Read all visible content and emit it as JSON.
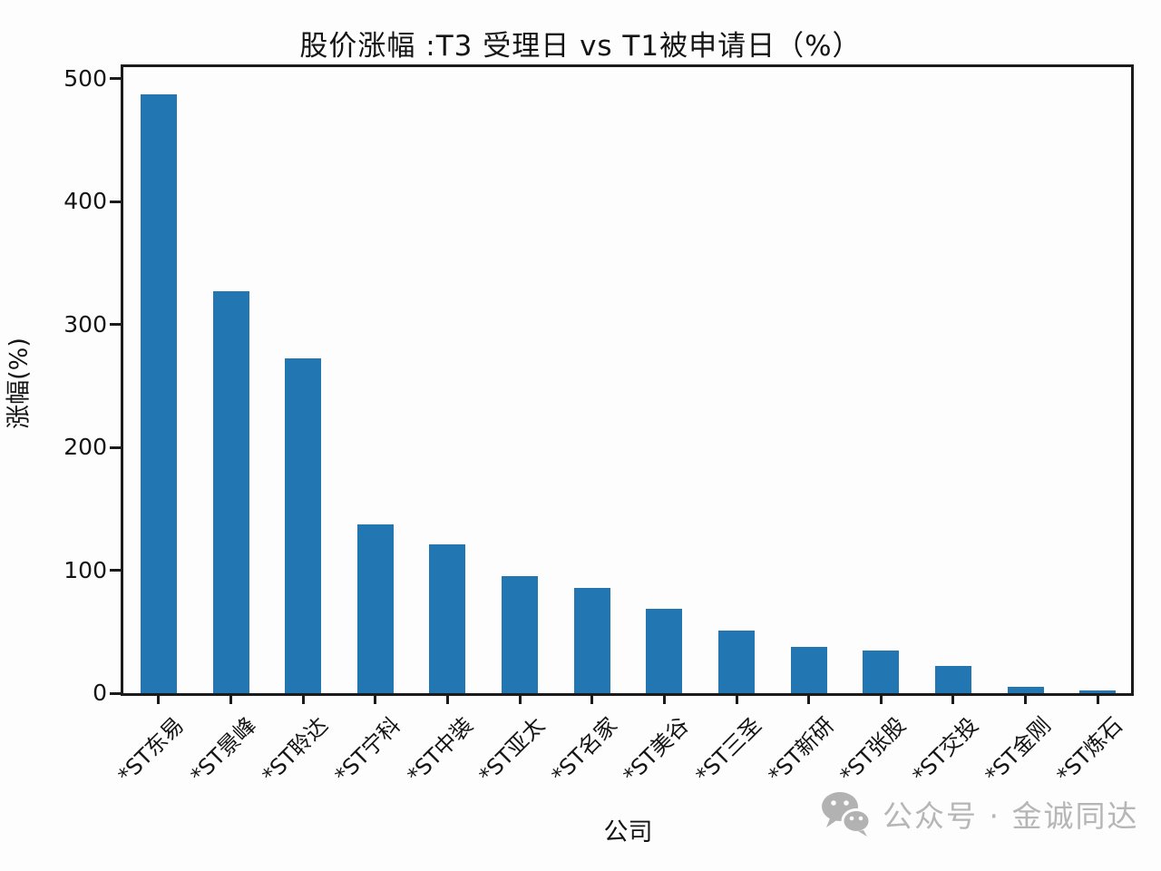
{
  "chart_data": {
    "type": "bar",
    "title": "股价涨幅 :T3 受理日 vs T1被申请日（%）",
    "xlabel": "公司",
    "ylabel": "涨幅(%)",
    "categories": [
      "*ST东易",
      "*ST景峰",
      "*ST聆达",
      "*ST宁科",
      "*ST中装",
      "*ST亚太",
      "*ST名家",
      "*ST美谷",
      "*ST三圣",
      "*ST新研",
      "*ST张股",
      "*ST交投",
      "*ST金刚",
      "*ST炼石"
    ],
    "values": [
      487,
      327,
      272,
      137,
      121,
      95,
      86,
      69,
      51,
      38,
      35,
      22,
      5,
      2
    ],
    "ylim": [
      0,
      500
    ],
    "yticks": [
      0,
      100,
      200,
      300,
      400,
      500
    ],
    "bar_color": "#2277b2",
    "grid": false,
    "legend_position": "none",
    "x_tick_rotation_deg": 45
  },
  "watermark": {
    "icon": "wechat-icon",
    "text": "公众号 · 金诚同达",
    "color": "#b6b6b6"
  }
}
